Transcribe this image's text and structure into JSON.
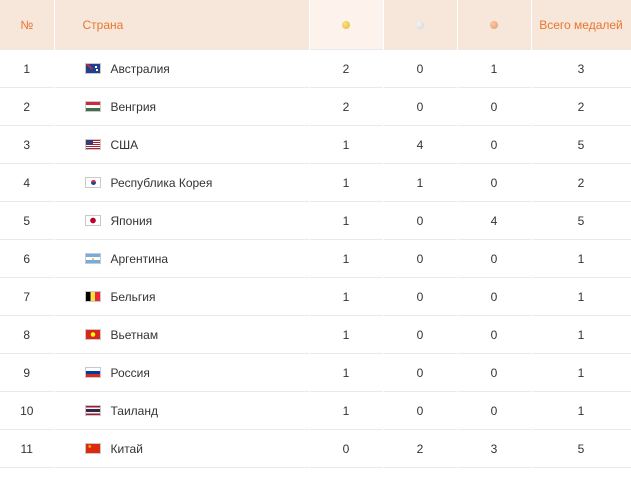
{
  "header": {
    "rank": "№",
    "country": "Страна",
    "total": "Всего медалей"
  },
  "medal_colors": {
    "gold": "#e9b931",
    "silver": "#cfd3d6",
    "bronze": "#e79a63"
  },
  "rows": [
    {
      "rank": "1",
      "country": "Австралия",
      "flag": "australia",
      "gold": "2",
      "silver": "0",
      "bronze": "1",
      "total": "3"
    },
    {
      "rank": "2",
      "country": "Венгрия",
      "flag": "hungary",
      "gold": "2",
      "silver": "0",
      "bronze": "0",
      "total": "2"
    },
    {
      "rank": "3",
      "country": "США",
      "flag": "usa",
      "gold": "1",
      "silver": "4",
      "bronze": "0",
      "total": "5"
    },
    {
      "rank": "4",
      "country": "Республика Корея",
      "flag": "korea",
      "gold": "1",
      "silver": "1",
      "bronze": "0",
      "total": "2"
    },
    {
      "rank": "5",
      "country": "Япония",
      "flag": "japan",
      "gold": "1",
      "silver": "0",
      "bronze": "4",
      "total": "5"
    },
    {
      "rank": "6",
      "country": "Аргентина",
      "flag": "argentina",
      "gold": "1",
      "silver": "0",
      "bronze": "0",
      "total": "1"
    },
    {
      "rank": "7",
      "country": "Бельгия",
      "flag": "belgium",
      "gold": "1",
      "silver": "0",
      "bronze": "0",
      "total": "1"
    },
    {
      "rank": "8",
      "country": "Вьетнам",
      "flag": "vietnam",
      "gold": "1",
      "silver": "0",
      "bronze": "0",
      "total": "1"
    },
    {
      "rank": "9",
      "country": "Россия",
      "flag": "russia",
      "gold": "1",
      "silver": "0",
      "bronze": "0",
      "total": "1"
    },
    {
      "rank": "10",
      "country": "Таиланд",
      "flag": "thailand",
      "gold": "1",
      "silver": "0",
      "bronze": "0",
      "total": "1"
    },
    {
      "rank": "11",
      "country": "Китай",
      "flag": "china",
      "gold": "0",
      "silver": "2",
      "bronze": "3",
      "total": "5"
    }
  ]
}
